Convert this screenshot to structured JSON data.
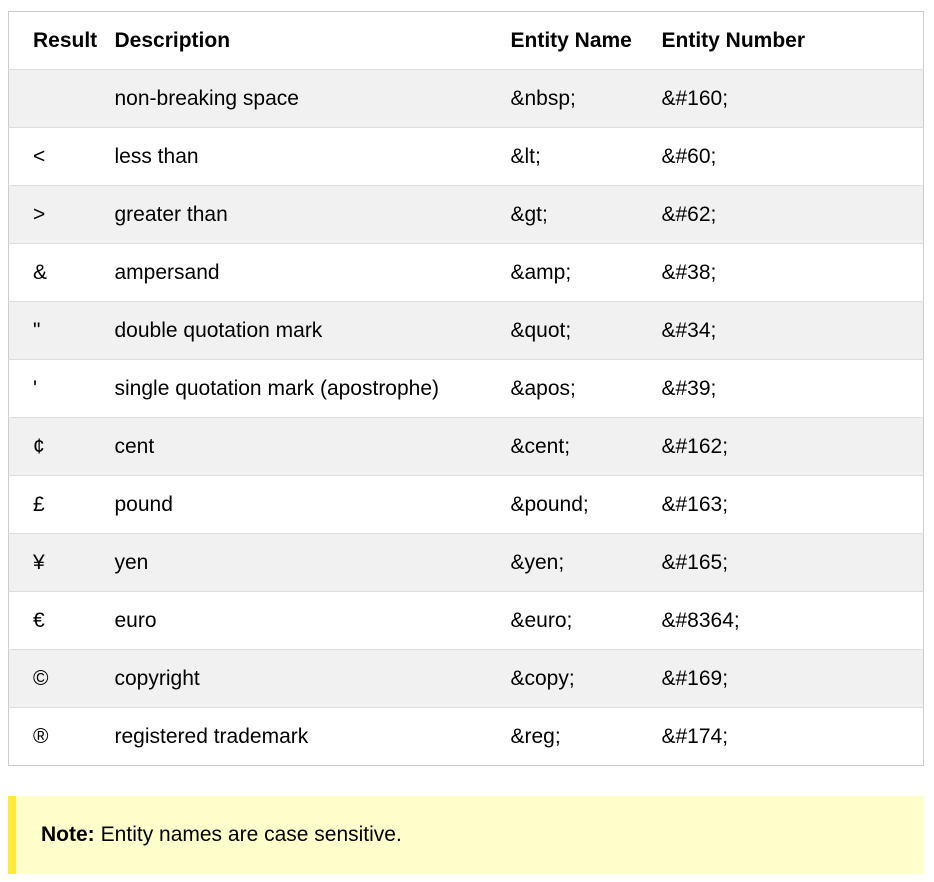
{
  "table": {
    "headers": [
      "Result",
      "Description",
      "Entity Name",
      "Entity Number"
    ],
    "rows": [
      {
        "result": " ",
        "description": "non-breaking space",
        "entity_name": "&nbsp;",
        "entity_number": "&#160;"
      },
      {
        "result": "<",
        "description": "less than",
        "entity_name": "&lt;",
        "entity_number": "&#60;"
      },
      {
        "result": ">",
        "description": "greater than",
        "entity_name": "&gt;",
        "entity_number": "&#62;"
      },
      {
        "result": "&",
        "description": "ampersand",
        "entity_name": "&amp;",
        "entity_number": "&#38;"
      },
      {
        "result": "\"",
        "description": "double quotation mark",
        "entity_name": "&quot;",
        "entity_number": "&#34;"
      },
      {
        "result": "'",
        "description": "single quotation mark (apostrophe)",
        "entity_name": "&apos;",
        "entity_number": "&#39;"
      },
      {
        "result": "¢",
        "description": "cent",
        "entity_name": "&cent;",
        "entity_number": "&#162;"
      },
      {
        "result": "£",
        "description": "pound",
        "entity_name": "&pound;",
        "entity_number": "&#163;"
      },
      {
        "result": "¥",
        "description": "yen",
        "entity_name": "&yen;",
        "entity_number": "&#165;"
      },
      {
        "result": "€",
        "description": "euro",
        "entity_name": "&euro;",
        "entity_number": "&#8364;"
      },
      {
        "result": "©",
        "description": "copyright",
        "entity_name": "&copy;",
        "entity_number": "&#169;"
      },
      {
        "result": "®",
        "description": "registered trademark",
        "entity_name": "&reg;",
        "entity_number": "&#174;"
      }
    ]
  },
  "note": {
    "label": "Note:",
    "text": "Entity names are case sensitive."
  },
  "colors": {
    "row_stripe": "#f1f1f1",
    "note_background": "#ffffcc",
    "note_border": "#ffeb3b"
  }
}
